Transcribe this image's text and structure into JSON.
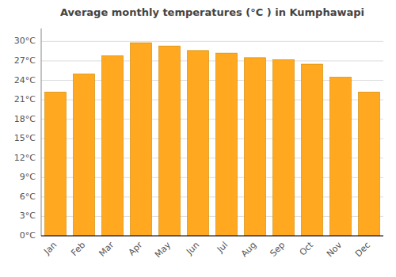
{
  "chart_data": {
    "type": "bar",
    "title": "Average monthly temperatures (°C ) in Kumphawapi",
    "categories": [
      "Jan",
      "Feb",
      "Mar",
      "Apr",
      "May",
      "Jun",
      "Jul",
      "Aug",
      "Sep",
      "Oct",
      "Nov",
      "Dec"
    ],
    "values": [
      22.2,
      25.0,
      27.8,
      29.8,
      29.3,
      28.6,
      28.2,
      27.5,
      27.2,
      26.5,
      24.5,
      22.2
    ],
    "color": "#FFA820",
    "ylim": [
      0,
      32
    ],
    "yticks": [
      {
        "value": 0,
        "label": "0°C"
      },
      {
        "value": 3,
        "label": "3°C"
      },
      {
        "value": 6,
        "label": "6°C"
      },
      {
        "value": 9,
        "label": "9°C"
      },
      {
        "value": 12,
        "label": "12°C"
      },
      {
        "value": 15,
        "label": "15°C"
      },
      {
        "value": 18,
        "label": "18°C"
      },
      {
        "value": 21,
        "label": "21°C"
      },
      {
        "value": 24,
        "label": "24°C"
      },
      {
        "value": 27,
        "label": "27°C"
      },
      {
        "value": 30,
        "label": "30°C"
      }
    ],
    "grid": true
  }
}
